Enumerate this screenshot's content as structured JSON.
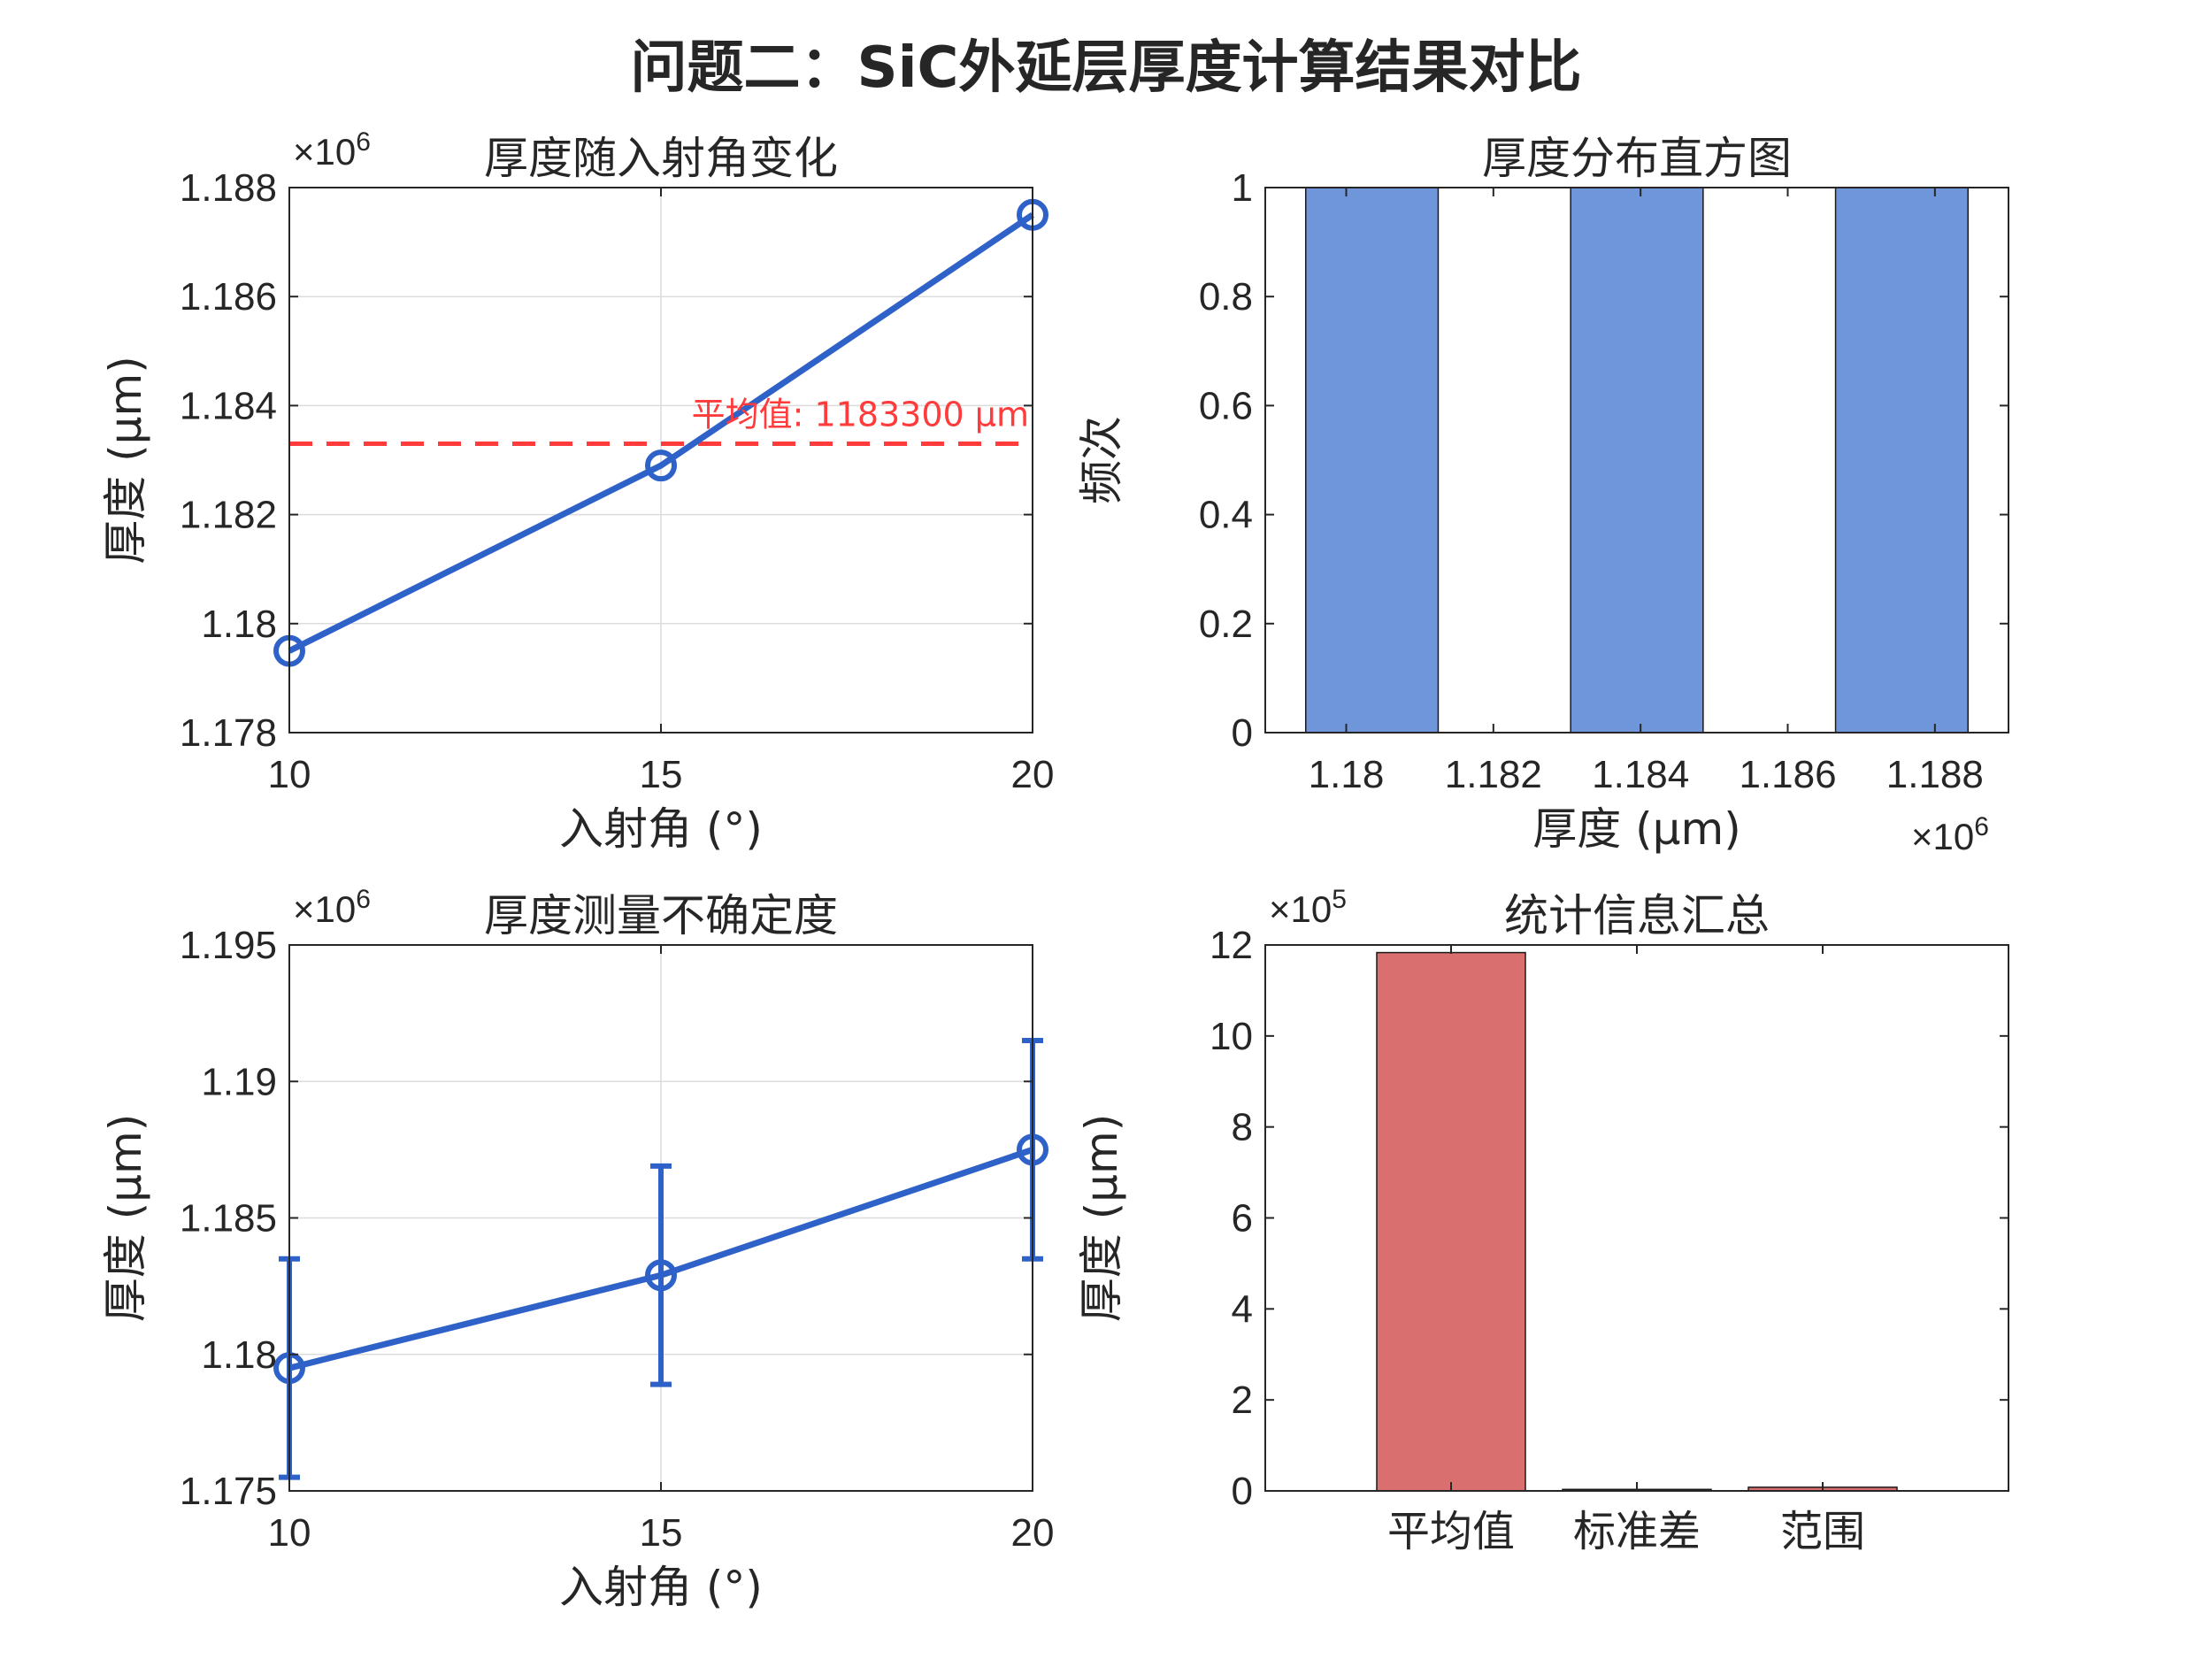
{
  "figure": {
    "title": "问题二：SiC外延层厚度计算结果对比",
    "colors": {
      "line": "#2f62c8",
      "mean_line": "#ff3b3b",
      "hist_bar": "#6f95db",
      "stat_bar": "#d96f6f",
      "grid": "#dcdcdc",
      "axis": "#262626"
    }
  },
  "chart_data": [
    {
      "id": "thickness_vs_angle",
      "type": "line",
      "title": "厚度随入射角变化",
      "xlabel": "入射角 (°)",
      "ylabel": "厚度 (μm)",
      "exponent_label": "×10",
      "exponent_power": "6",
      "x": [
        10,
        15,
        20
      ],
      "y": [
        1179500,
        1182900,
        1187500
      ],
      "xlim": [
        10,
        20
      ],
      "ylim": [
        1178000,
        1188000
      ],
      "xticks": [
        10,
        15,
        20
      ],
      "xtick_labels": [
        "10",
        "15",
        "20"
      ],
      "yticks": [
        1178000,
        1180000,
        1182000,
        1184000,
        1186000,
        1188000
      ],
      "ytick_labels": [
        "1.178",
        "1.18",
        "1.182",
        "1.184",
        "1.186",
        "1.188"
      ],
      "grid": true,
      "mean_value": 1183300,
      "mean_label": "平均值: 1183300 μm"
    },
    {
      "id": "thickness_histogram",
      "type": "bar",
      "title": "厚度分布直方图",
      "xlabel": "厚度 (μm)",
      "ylabel": "频次",
      "exponent_label": "×10",
      "exponent_power": "6",
      "bins": [
        {
          "start": 1179450,
          "end": 1181250,
          "count": 1
        },
        {
          "start": 1183050,
          "end": 1184850,
          "count": 1
        },
        {
          "start": 1186650,
          "end": 1188450,
          "count": 1
        }
      ],
      "xlim": [
        1178900,
        1189000
      ],
      "ylim": [
        0,
        1
      ],
      "xticks": [
        1180000,
        1182000,
        1184000,
        1186000,
        1188000
      ],
      "xtick_labels": [
        "1.18",
        "1.182",
        "1.184",
        "1.186",
        "1.188"
      ],
      "yticks": [
        0,
        0.2,
        0.4,
        0.6,
        0.8,
        1
      ],
      "ytick_labels": [
        "0",
        "0.2",
        "0.4",
        "0.6",
        "0.8",
        "1"
      ],
      "grid": false
    },
    {
      "id": "thickness_uncertainty",
      "type": "line",
      "title": "厚度测量不确定度",
      "xlabel": "入射角 (°)",
      "ylabel": "厚度 (μm)",
      "exponent_label": "×10",
      "exponent_power": "6",
      "x": [
        10,
        15,
        20
      ],
      "y": [
        1179500,
        1182900,
        1187500
      ],
      "error": [
        4000,
        4000,
        4000
      ],
      "xlim": [
        10,
        20
      ],
      "ylim": [
        1175000,
        1195000
      ],
      "xticks": [
        10,
        15,
        20
      ],
      "xtick_labels": [
        "10",
        "15",
        "20"
      ],
      "yticks": [
        1175000,
        1180000,
        1185000,
        1190000,
        1195000
      ],
      "ytick_labels": [
        "1.175",
        "1.18",
        "1.185",
        "1.19",
        "1.195"
      ],
      "grid": true
    },
    {
      "id": "statistics_summary",
      "type": "bar",
      "title": "统计信息汇总",
      "xlabel": "",
      "ylabel": "厚度 (μm)",
      "exponent_label": "×10",
      "exponent_power": "5",
      "categories": [
        "平均值",
        "标准差",
        "范围"
      ],
      "values": [
        1183300,
        3300,
        8000
      ],
      "ylim": [
        0,
        1200000
      ],
      "yticks": [
        0,
        200000,
        400000,
        600000,
        800000,
        1000000,
        1200000
      ],
      "ytick_labels": [
        "0",
        "2",
        "4",
        "6",
        "8",
        "10",
        "12"
      ],
      "grid": false
    }
  ]
}
